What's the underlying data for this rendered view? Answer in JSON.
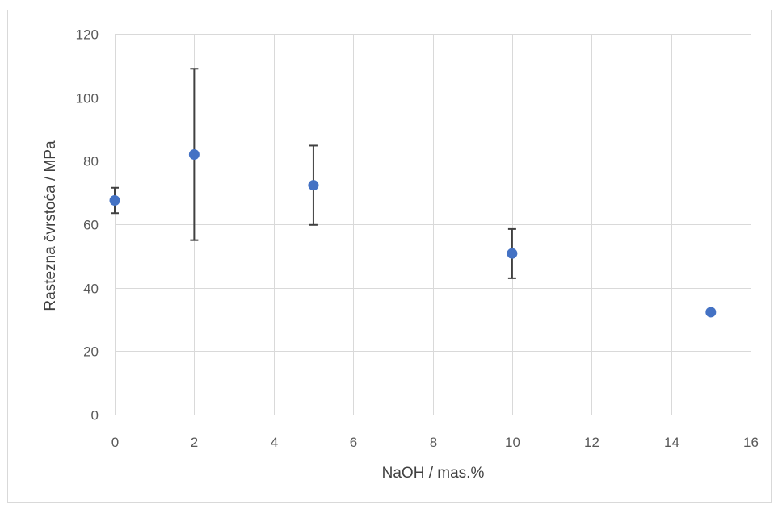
{
  "chart_data": {
    "type": "scatter",
    "xlabel": "NaOH / mas.%",
    "ylabel": "Rastezna čvrstoća / MPa",
    "xlim": [
      0,
      16
    ],
    "ylim": [
      0,
      120
    ],
    "x_ticks": [
      0,
      2,
      4,
      6,
      8,
      10,
      12,
      14,
      16
    ],
    "y_ticks": [
      0,
      20,
      40,
      60,
      80,
      100,
      120
    ],
    "x_tick_labels": [
      "0",
      "2",
      "4",
      "6",
      "8",
      "10",
      "12",
      "14",
      "16"
    ],
    "y_tick_labels": [
      "0",
      "20",
      "40",
      "60",
      "80",
      "100",
      "120"
    ],
    "grid": true,
    "legend": "none",
    "marker_color": "#4472C4",
    "error_bar_color": "#404040",
    "gridline_color": "#D9D9D9",
    "series": [
      {
        "points": [
          {
            "x": 0,
            "y": 67.5,
            "y_low": 63.5,
            "y_high": 71.5
          },
          {
            "x": 2,
            "y": 82.0,
            "y_low": 55.0,
            "y_high": 109.0
          },
          {
            "x": 5,
            "y": 72.3,
            "y_low": 59.8,
            "y_high": 84.8
          },
          {
            "x": 10,
            "y": 50.8,
            "y_low": 43.0,
            "y_high": 58.5
          },
          {
            "x": 15,
            "y": 32.3,
            "y_low": 31.5,
            "y_high": 33.1
          }
        ]
      }
    ]
  }
}
